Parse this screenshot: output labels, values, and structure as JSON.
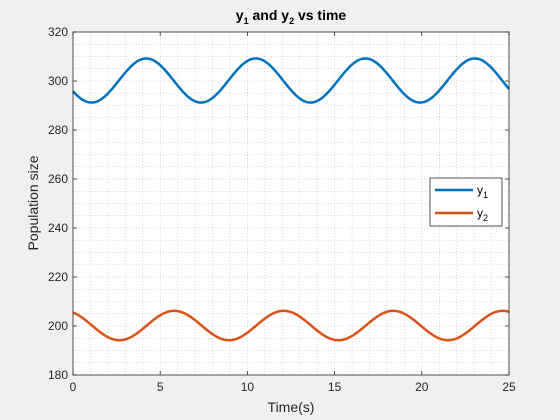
{
  "chart_data": {
    "type": "line",
    "title": {
      "a": "y",
      "a_sub": "1",
      "mid": " and y",
      "b_sub": "2",
      "end": " vs time"
    },
    "xlabel": "Time(s)",
    "ylabel": "Population size",
    "xlim": [
      0,
      25
    ],
    "ylim": [
      180,
      320
    ],
    "xticks": [
      0,
      5,
      10,
      15,
      20,
      25
    ],
    "yticks": [
      180,
      200,
      220,
      240,
      260,
      280,
      300,
      320
    ],
    "grid": "minor dotted",
    "legend_position": "east",
    "series": [
      {
        "name": "y",
        "name_sub": "1",
        "color": "#0072bd",
        "mean": 300.2,
        "amplitude": 9,
        "period": 6.28,
        "peak_t": 4.2,
        "start": 295.5,
        "end": 296.5
      },
      {
        "name": "y",
        "name_sub": "2",
        "color": "#d95319",
        "mean": 200.2,
        "amplitude": 6,
        "period": 6.28,
        "peak_t": 5.8,
        "start": 205,
        "end": 205.6
      }
    ]
  }
}
